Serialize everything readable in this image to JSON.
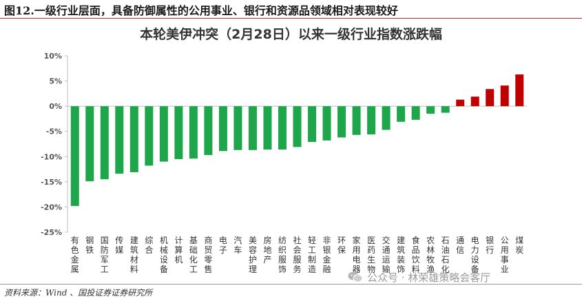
{
  "figure_title": "图12.一级行业层面，具备防御属性的公用事业、银行和资源品领域相对表现较好",
  "source": "资料来源：Wind 、国投证券证券研究所",
  "watermark": "公众号 · 林荣雄策略会客厅",
  "colors": {
    "negative": "#1ea64a",
    "positive": "#c00000",
    "rule": "#b3322f"
  },
  "chart_data": {
    "type": "bar",
    "title": "本轮美伊冲突（2月28日）以来一级行业指数涨跌幅",
    "categories": [
      "有色金属",
      "钢铁",
      "国防军工",
      "传媒",
      "建筑材料",
      "综合",
      "机械设备",
      "计算机",
      "基础化工",
      "商贸零售",
      "电子",
      "汽车",
      "美容护理",
      "房地产",
      "纺织服饰",
      "社会服务",
      "轻工制造",
      "非银金融",
      "环保",
      "家用电器",
      "医药生物",
      "交通运输",
      "建筑装饰",
      "食品饮料",
      "农林牧渔",
      "石油石化",
      "通信",
      "电力设备",
      "银行",
      "公用事业",
      "煤炭"
    ],
    "values": [
      -19.8,
      -14.9,
      -14.5,
      -13.4,
      -13.1,
      -11.8,
      -11.0,
      -10.5,
      -10.4,
      -9.7,
      -8.9,
      -8.7,
      -8.7,
      -8.6,
      -8.6,
      -8.1,
      -7.1,
      -6.8,
      -6.2,
      -5.7,
      -5.6,
      -4.7,
      -3.1,
      -2.7,
      -1.5,
      -1.3,
      1.3,
      1.9,
      3.4,
      4.1,
      6.3
    ],
    "ylim": [
      -25,
      10
    ],
    "yticks": [
      10,
      5,
      0,
      -5,
      -10,
      -15,
      -20,
      -25
    ],
    "ytick_labels": [
      "10%",
      "5%",
      "0%",
      "-5%",
      "-10%",
      "-15%",
      "-20%",
      "-25%"
    ],
    "xlabel": "",
    "ylabel": "",
    "grid": false,
    "legend": "none"
  }
}
